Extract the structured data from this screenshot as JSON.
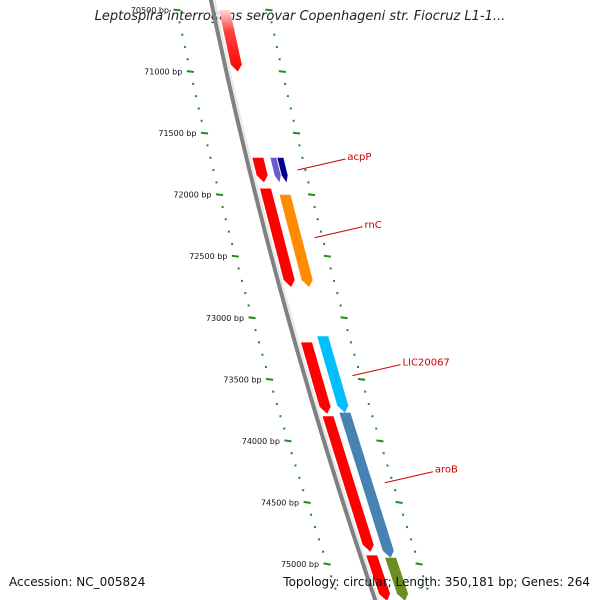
{
  "header": {
    "title": "Leptospira interrogans serovar Copenhageni str. Fiocruz L1-1..."
  },
  "footer": {
    "accession": "Accession: NC_005824",
    "summary": "Topology: circular; Length: 350,181 bp; Genes: 264"
  },
  "colors": {
    "backbone": "#808080",
    "tick": "#228b22",
    "forward_gene": "#ff0000",
    "label": "#cc0000"
  },
  "ticks": [
    {
      "label": "70500 bp",
      "bp": 70500
    },
    {
      "label": "71000 bp",
      "bp": 71000
    },
    {
      "label": "71500 bp",
      "bp": 71500
    },
    {
      "label": "72000 bp",
      "bp": 72000
    },
    {
      "label": "72500 bp",
      "bp": 72500
    },
    {
      "label": "73000 bp",
      "bp": 73000
    },
    {
      "label": "73500 bp",
      "bp": 73500
    },
    {
      "label": "74000 bp",
      "bp": 74000
    },
    {
      "label": "74500 bp",
      "bp": 74500
    },
    {
      "label": "75000 bp",
      "bp": 75000
    }
  ],
  "features": [
    {
      "track": "inner",
      "start": 70500,
      "end": 71000,
      "color": "#ff0000",
      "faded_start": true
    },
    {
      "track": "inner",
      "start": 71700,
      "end": 71900,
      "color": "#ff0000"
    },
    {
      "track": "inner",
      "start": 71950,
      "end": 72750,
      "color": "#ff0000"
    },
    {
      "track": "inner",
      "start": 73200,
      "end": 73780,
      "color": "#ff0000"
    },
    {
      "track": "inner",
      "start": 73800,
      "end": 74900,
      "color": "#ff0000"
    },
    {
      "track": "inner",
      "start": 74930,
      "end": 75300,
      "color": "#ff0000"
    },
    {
      "track": "outer",
      "start": 71700,
      "end": 71900,
      "color": "#6a5acd"
    },
    {
      "track": "outer2",
      "start": 71700,
      "end": 71900,
      "color": "#00008b"
    },
    {
      "track": "outer",
      "start": 72000,
      "end": 72750,
      "color": "#ff8c00"
    },
    {
      "track": "outer",
      "start": 73150,
      "end": 73770,
      "color": "#00bfff"
    },
    {
      "track": "outer",
      "start": 73770,
      "end": 74950,
      "color": "#4682b4"
    },
    {
      "track": "outer",
      "start": 74950,
      "end": 75300,
      "color": "#6b8e23"
    }
  ],
  "gene_labels": [
    {
      "text": "acpP",
      "bp": 71800
    },
    {
      "text": "rnC",
      "bp": 72350
    },
    {
      "text": "LIC20067",
      "bp": 73470
    },
    {
      "text": "aroB",
      "bp": 74340
    }
  ]
}
